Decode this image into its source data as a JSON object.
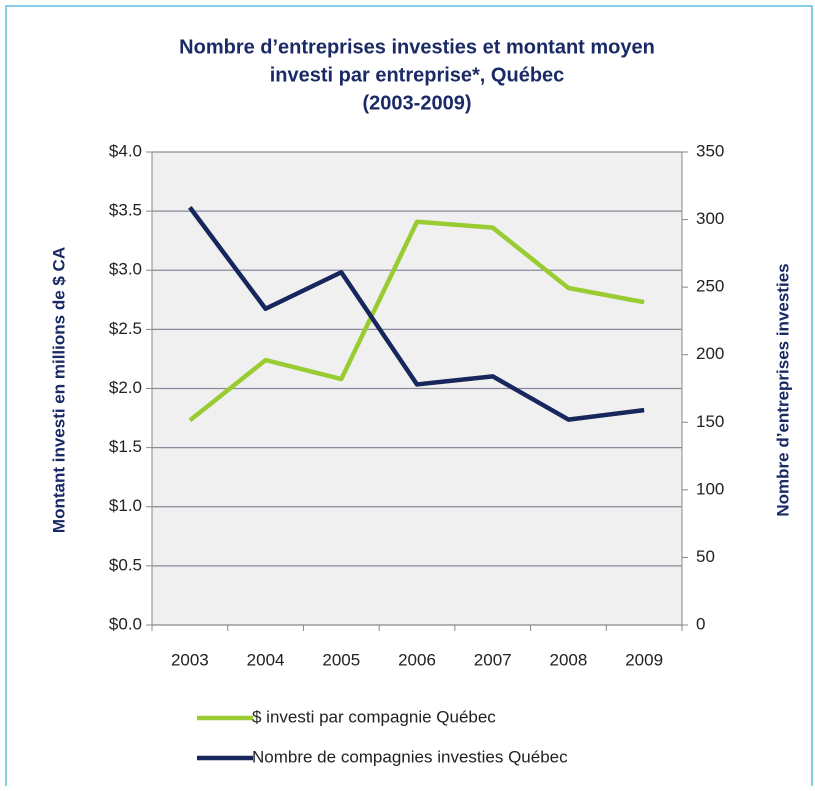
{
  "chart_data": {
    "type": "line",
    "title": [
      "Nombre d’entreprises investies et montant moyen",
      "investi par entreprise*, Québec",
      "(2003-2009)"
    ],
    "ylabel": "Montant investi en millions de $ CA",
    "y2label": "Nombre d’entreprises investies",
    "categories": [
      "2003",
      "2004",
      "2005",
      "2006",
      "2007",
      "2008",
      "2009"
    ],
    "series": [
      {
        "name": "$ investi par compagnie Québec",
        "color": "#99cc33",
        "values": [
          1.73,
          2.24,
          2.08,
          3.41,
          3.36,
          2.85,
          2.73
        ]
      },
      {
        "name": "Nombre de compagnies investies Québec",
        "color": "#17275e",
        "axis": "y2",
        "values": [
          309,
          234,
          261,
          178,
          184,
          152,
          159
        ]
      }
    ],
    "ylim": [
      0,
      4
    ],
    "yticks": [
      {
        "value": 0,
        "label": "$0.0"
      },
      {
        "value": 0.5,
        "label": "$0.5"
      },
      {
        "value": 1,
        "label": "$1.0"
      },
      {
        "value": 1.5,
        "label": "$1.5"
      },
      {
        "value": 2,
        "label": "$2.0"
      },
      {
        "value": 2.5,
        "label": "$2.5"
      },
      {
        "value": 3,
        "label": "$3.0"
      },
      {
        "value": 3.5,
        "label": "$3.5"
      },
      {
        "value": 4,
        "label": "$4.0"
      }
    ],
    "y2lim": [
      0,
      350
    ],
    "y2ticks": [
      0,
      50,
      100,
      150,
      200,
      250,
      300,
      350
    ],
    "grid": true
  }
}
